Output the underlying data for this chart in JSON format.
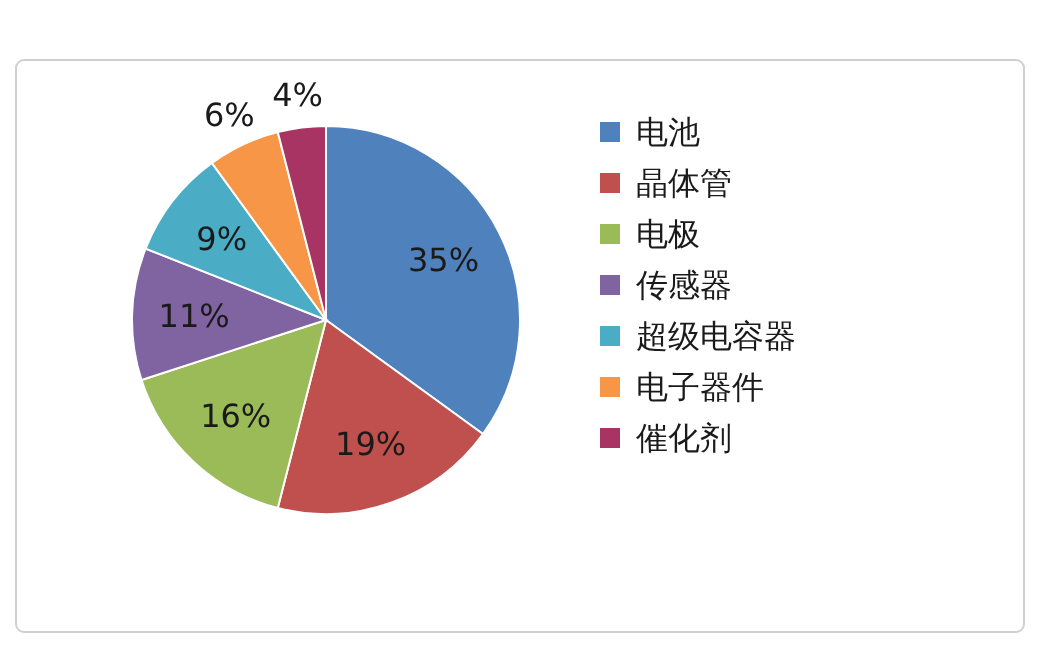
{
  "chart_data": {
    "type": "pie",
    "categories": [
      "电池",
      "晶体管",
      "电极",
      "传感器",
      "超级电容器",
      "电子器件",
      "催化剂"
    ],
    "values": [
      35,
      19,
      16,
      11,
      9,
      6,
      4
    ],
    "colors": [
      "#4f81bd",
      "#c0504d",
      "#9bbb59",
      "#8064a2",
      "#4bacc6",
      "#f79646",
      "#a83463"
    ],
    "value_labels": [
      "35%",
      "19%",
      "16%",
      "11%",
      "9%",
      "6%",
      "4%"
    ],
    "legend": "right"
  }
}
